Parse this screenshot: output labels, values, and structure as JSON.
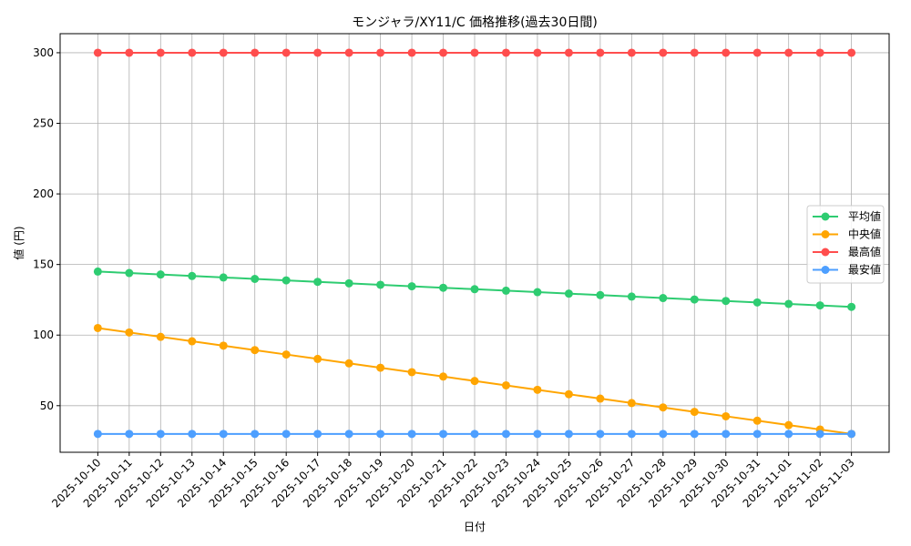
{
  "chart_data": {
    "type": "line",
    "title": "モンジャラ/XY11/C 価格推移(過去30日間)",
    "xlabel": "日付",
    "ylabel": "値 (円)",
    "ylim": [
      17,
      313.5
    ],
    "yticks": [
      50,
      100,
      150,
      200,
      250,
      300
    ],
    "grid": true,
    "legend": "center-right",
    "x": [
      "2025-10-10",
      "2025-10-11",
      "2025-10-12",
      "2025-10-13",
      "2025-10-14",
      "2025-10-15",
      "2025-10-16",
      "2025-10-17",
      "2025-10-18",
      "2025-10-19",
      "2025-10-20",
      "2025-10-21",
      "2025-10-22",
      "2025-10-23",
      "2025-10-24",
      "2025-10-25",
      "2025-10-26",
      "2025-10-27",
      "2025-10-28",
      "2025-10-29",
      "2025-10-30",
      "2025-10-31",
      "2025-11-01",
      "2025-11-02",
      "2025-11-03"
    ],
    "series": [
      {
        "name": "平均値",
        "color": "#2ecc71",
        "values": [
          145,
          143.96,
          142.92,
          141.88,
          140.83,
          139.79,
          138.75,
          137.71,
          136.67,
          135.63,
          134.58,
          133.54,
          132.5,
          131.46,
          130.42,
          129.38,
          128.33,
          127.29,
          126.25,
          125.21,
          124.17,
          123.13,
          122.08,
          121.04,
          120
        ]
      },
      {
        "name": "中央値",
        "color": "#ffa500",
        "values": [
          105,
          101.88,
          98.75,
          95.63,
          92.5,
          89.38,
          86.25,
          83.13,
          80,
          76.88,
          73.75,
          70.63,
          67.5,
          64.38,
          61.25,
          58.13,
          55,
          51.88,
          48.75,
          45.63,
          42.5,
          39.38,
          36.25,
          33.13,
          30
        ]
      },
      {
        "name": "最高値",
        "color": "#ff4d4d",
        "values": [
          300,
          300,
          300,
          300,
          300,
          300,
          300,
          300,
          300,
          300,
          300,
          300,
          300,
          300,
          300,
          300,
          300,
          300,
          300,
          300,
          300,
          300,
          300,
          300,
          300
        ]
      },
      {
        "name": "最安値",
        "color": "#4d9fff",
        "values": [
          30,
          30,
          30,
          30,
          30,
          30,
          30,
          30,
          30,
          30,
          30,
          30,
          30,
          30,
          30,
          30,
          30,
          30,
          30,
          30,
          30,
          30,
          30,
          30,
          30
        ]
      }
    ]
  }
}
